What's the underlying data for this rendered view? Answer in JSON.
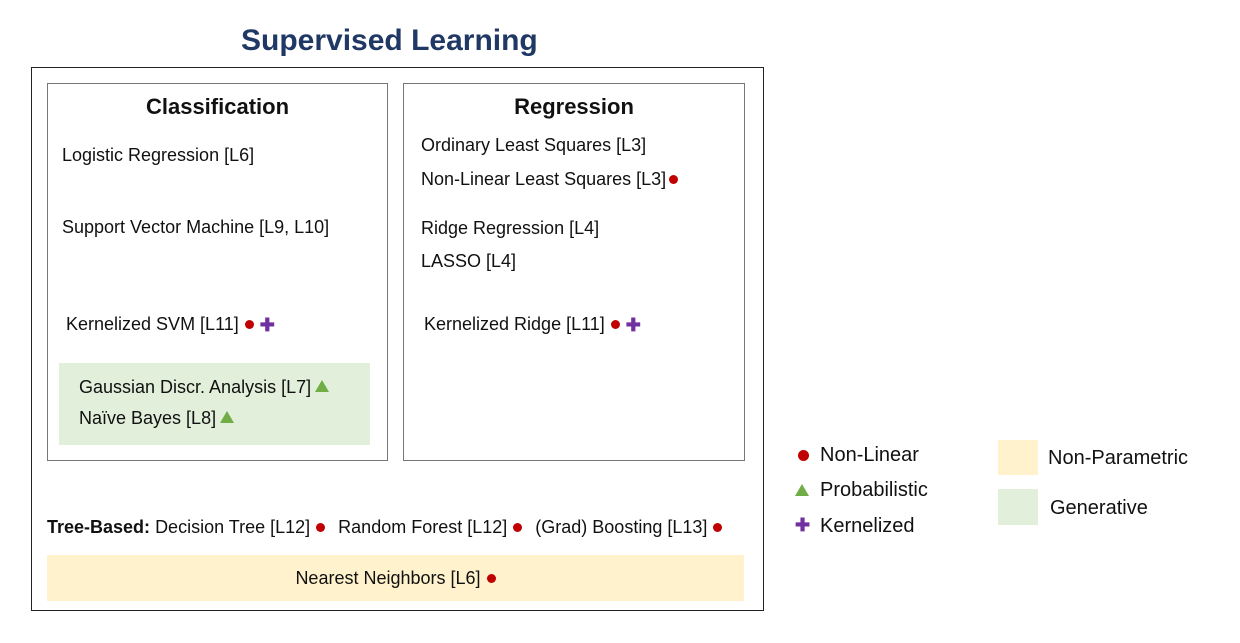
{
  "title": "Supervised Learning",
  "classification": {
    "heading": "Classification",
    "items": [
      "Logistic Regression [L6]",
      "Support Vector Machine [L9, L10]",
      "Kernelized SVM [L11]"
    ],
    "generative_items": [
      "Gaussian Discr. Analysis [L7]",
      "Naïve Bayes [L8]"
    ]
  },
  "regression": {
    "heading": "Regression",
    "items": [
      "Ordinary Least Squares [L3]",
      "Non-Linear Least Squares [L3]",
      "Ridge Regression [L4]",
      "LASSO [L4]",
      "Kernelized Ridge [L11]"
    ]
  },
  "tree_based": {
    "label": "Tree-Based:",
    "items": [
      "Decision Tree [L12]",
      "Random Forest [L12]",
      "(Grad) Boosting [L13]"
    ]
  },
  "nearest_neighbors": "Nearest Neighbors [L6]",
  "legend": {
    "nonlinear": "Non-Linear",
    "probabilistic": "Probabilistic",
    "kernelized": "Kernelized",
    "nonparametric": "Non-Parametric",
    "generative": "Generative"
  },
  "colors": {
    "title": "#1f3864",
    "nonlinear_marker": "#c00000",
    "probabilistic_marker": "#70ad47",
    "kernelized_marker": "#7030a0",
    "nonparametric_fill": "#fff2cc",
    "generative_fill": "#e2efda"
  }
}
